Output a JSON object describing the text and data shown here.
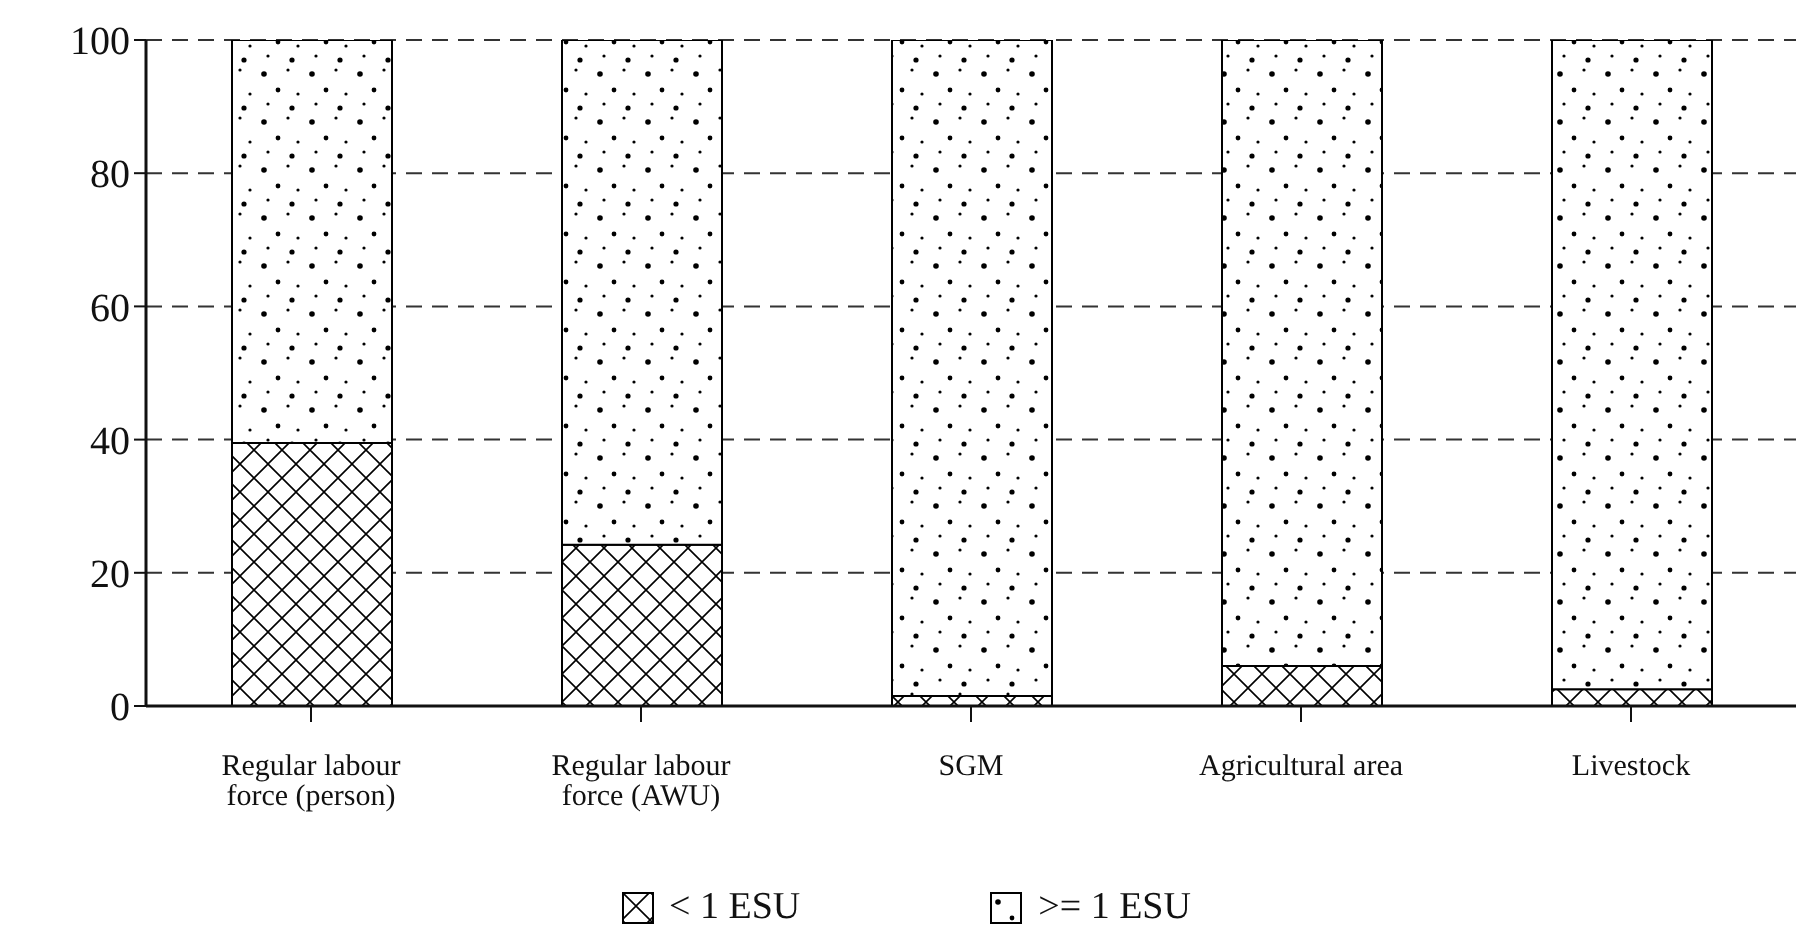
{
  "chart_data": {
    "type": "bar",
    "stacked": true,
    "categories": [
      "Regular labour force (person)",
      "Regular labour force (AWU)",
      "SGM",
      "Agricultural area",
      "Livestock"
    ],
    "series": [
      {
        "name": "< 1 ESU",
        "color": "#000000",
        "values": [
          39.5,
          24.2,
          1.5,
          6,
          2.5
        ]
      },
      {
        "name": ">= 1 ESU",
        "color": "#000000",
        "values": [
          60.5,
          75.8,
          98.5,
          94,
          97.5
        ]
      }
    ],
    "ylim": [
      0,
      100
    ],
    "yticks": [
      0,
      20,
      40,
      60,
      80,
      100
    ],
    "grid": "y",
    "legend": "bottom"
  }
}
